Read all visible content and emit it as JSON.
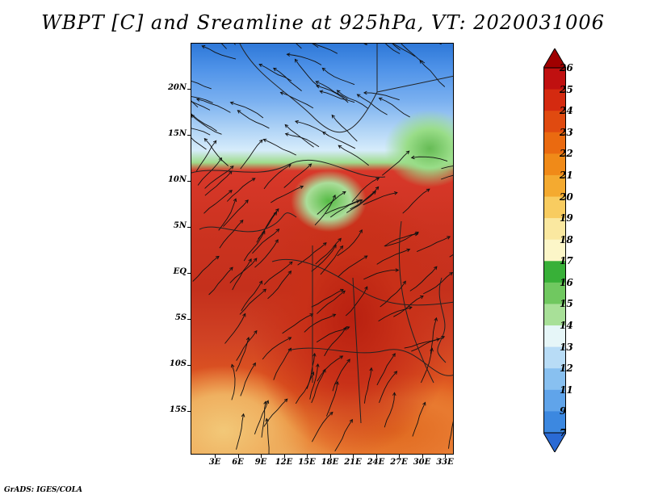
{
  "title": "WBPT [C] and Sreamline at 925hPa, VT: 2020031006",
  "footer": "GrADS: IGES/COLA",
  "map": {
    "lat_labels": [
      "20N",
      "15N",
      "10N",
      "5N",
      "EQ",
      "5S",
      "10S",
      "15S"
    ],
    "lon_labels": [
      "3E",
      "6E",
      "9E",
      "12E",
      "15E",
      "18E",
      "21E",
      "24E",
      "27E",
      "30E",
      "33E"
    ]
  },
  "colorbar": {
    "levels": [
      "26",
      "25",
      "24",
      "23",
      "22",
      "21",
      "20",
      "19",
      "18",
      "17",
      "16",
      "15",
      "14",
      "13",
      "12",
      "11",
      "9",
      "7"
    ],
    "colors": [
      "#a00000",
      "#c01010",
      "#d42a10",
      "#e04a10",
      "#ea6a10",
      "#f08a18",
      "#f4aa30",
      "#f8cc60",
      "#fae8a0",
      "#fcf6c8",
      "#38b038",
      "#70c860",
      "#a8e098",
      "#e6f6f8",
      "#b8dcf6",
      "#88c0f0",
      "#60a4ea",
      "#3c88e0",
      "#2a6ad4"
    ]
  }
}
